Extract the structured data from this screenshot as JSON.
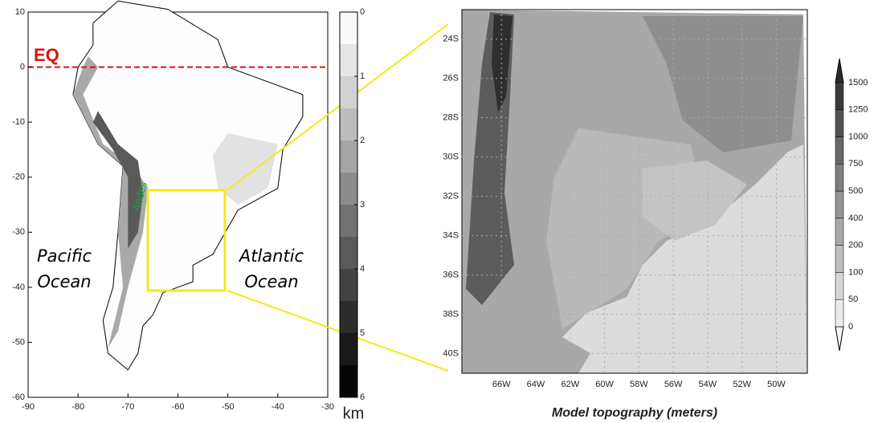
{
  "left_map": {
    "xlim": [
      -90,
      -30
    ],
    "ylim": [
      -60,
      10
    ],
    "xticks": [
      -90,
      -80,
      -70,
      -60,
      -50,
      -40,
      -30
    ],
    "yticks": [
      10,
      0,
      -10,
      -20,
      -30,
      -40,
      -50,
      -60
    ],
    "equator_label": "EQ",
    "pacific_label": [
      "Pacific",
      "Ocean"
    ],
    "atlantic_label": [
      "Atlantic",
      "Ocean"
    ],
    "andes_label": "Andes"
  },
  "left_colorbar": {
    "lim": [
      0,
      6
    ],
    "ticks": [
      0,
      1,
      2,
      3,
      4,
      5,
      6
    ],
    "unit": "km"
  },
  "right_map": {
    "xlim": [
      -68.3,
      -48.2
    ],
    "ylim": [
      -41,
      -22.5
    ],
    "xticks": [
      {
        "value": -66,
        "label": "66W"
      },
      {
        "value": -64,
        "label": "64W"
      },
      {
        "value": -62,
        "label": "62W"
      },
      {
        "value": -60,
        "label": "60W"
      },
      {
        "value": -58,
        "label": "58W"
      },
      {
        "value": -56,
        "label": "56W"
      },
      {
        "value": -54,
        "label": "54W"
      },
      {
        "value": -52,
        "label": "52W"
      },
      {
        "value": -50,
        "label": "50W"
      }
    ],
    "yticks": [
      {
        "value": -24,
        "label": "24S"
      },
      {
        "value": -26,
        "label": "26S"
      },
      {
        "value": -28,
        "label": "28S"
      },
      {
        "value": -30,
        "label": "30S"
      },
      {
        "value": -32,
        "label": "32S"
      },
      {
        "value": -34,
        "label": "34S"
      },
      {
        "value": -36,
        "label": "36S"
      },
      {
        "value": -38,
        "label": "38S"
      },
      {
        "value": -40,
        "label": "40S"
      }
    ],
    "caption": "Model topography (meters)"
  },
  "right_colorbar": {
    "ticks": [
      1500,
      1250,
      1000,
      750,
      500,
      400,
      200,
      100,
      50,
      0
    ]
  }
}
